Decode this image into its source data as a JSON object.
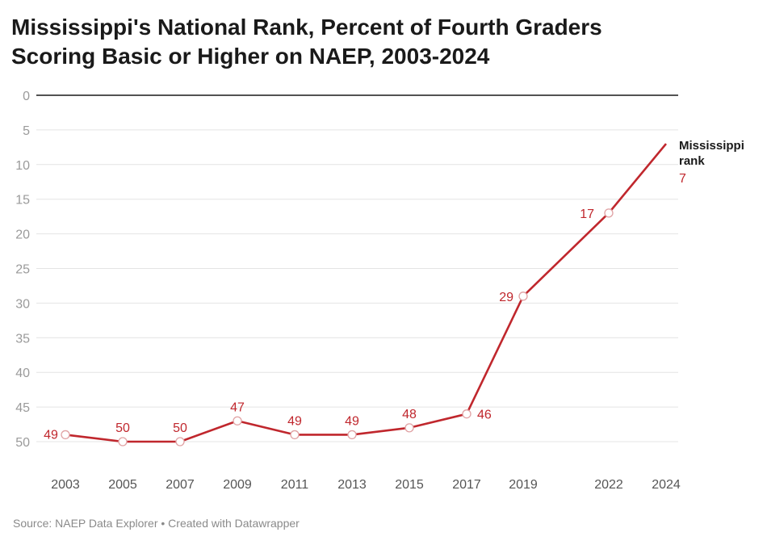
{
  "chart_data": {
    "type": "line",
    "title_line1": "Mississippi's National Rank, Percent of Fourth Graders",
    "title_line2": "Scoring Basic or Higher on NAEP, 2003-2024",
    "x": [
      2003,
      2005,
      2007,
      2009,
      2011,
      2013,
      2015,
      2017,
      2019,
      2022,
      2024
    ],
    "series": [
      {
        "name": "Mississippi rank",
        "values": [
          49,
          50,
          50,
          47,
          49,
          49,
          48,
          46,
          29,
          17,
          7
        ]
      }
    ],
    "y_axis": {
      "ticks": [
        0,
        5,
        10,
        15,
        20,
        25,
        30,
        35,
        40,
        45,
        50
      ],
      "inverted": true
    },
    "x_tick_labels": [
      "2003",
      "2005",
      "2007",
      "2009",
      "2011",
      "2013",
      "2015",
      "2017",
      "2019",
      "2022",
      "2024"
    ],
    "end_label_line1": "Mississippi",
    "end_label_line2": "rank",
    "end_value_label": "7",
    "colors": {
      "line": "#c0272d",
      "grid": "#e4e4e4",
      "zero": "#1a1a1a",
      "axis_text": "#9a9a9a",
      "x_text": "#555555"
    }
  },
  "footer": {
    "source": "Source: NAEP Data Explorer • Created with Datawrapper"
  }
}
